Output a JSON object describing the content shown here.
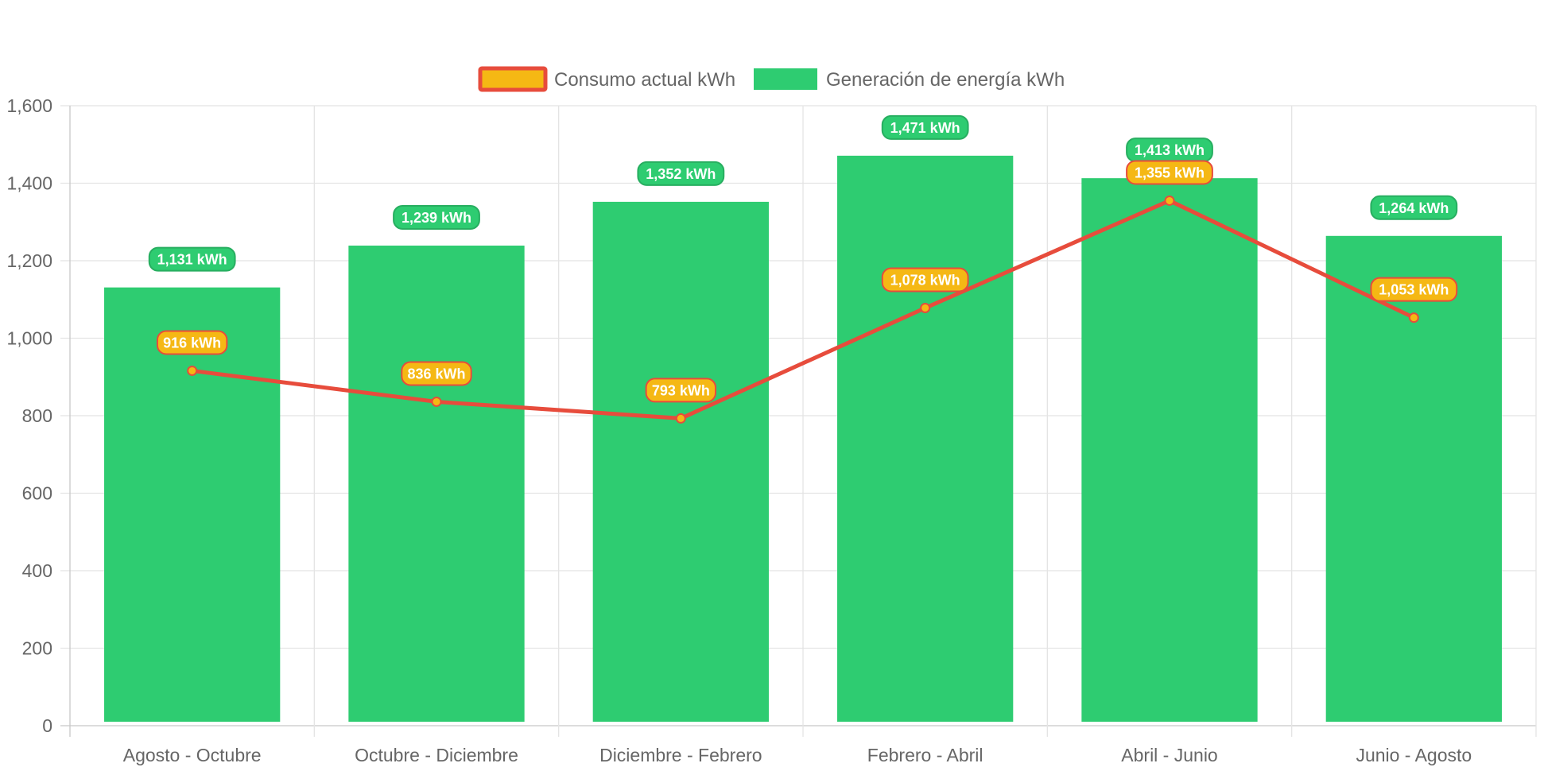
{
  "chart_data": {
    "type": "bar",
    "categories": [
      "Agosto - Octubre",
      "Octubre - Diciembre",
      "Diciembre - Febrero",
      "Febrero - Abril",
      "Abril - Junio",
      "Junio - Agosto"
    ],
    "ylim": [
      0,
      1600
    ],
    "yticks": [
      "0",
      "200",
      "400",
      "600",
      "800",
      "1,000",
      "1,200",
      "1,400",
      "1,600"
    ],
    "grid": true,
    "legend_position": "top-center",
    "series": [
      {
        "name": "Consumo actual kWh",
        "type": "line",
        "values": [
          916,
          836,
          793,
          1078,
          1355,
          1053
        ],
        "labels": [
          "916 kWh",
          "836 kWh",
          "793 kWh",
          "1,078 kWh",
          "1,355 kWh",
          "1,053 kWh"
        ],
        "color": "#e74c3c",
        "fill": "#f5b814"
      },
      {
        "name": "Generación de energía kWh",
        "type": "bar",
        "values": [
          1131,
          1239,
          1352,
          1471,
          1413,
          1264
        ],
        "labels": [
          "1,131 kWh",
          "1,239 kWh",
          "1,352 kWh",
          "1,471 kWh",
          "1,413 kWh",
          "1,264 kWh"
        ],
        "color": "#2ecc71",
        "label_border": "#27ae60"
      }
    ]
  }
}
